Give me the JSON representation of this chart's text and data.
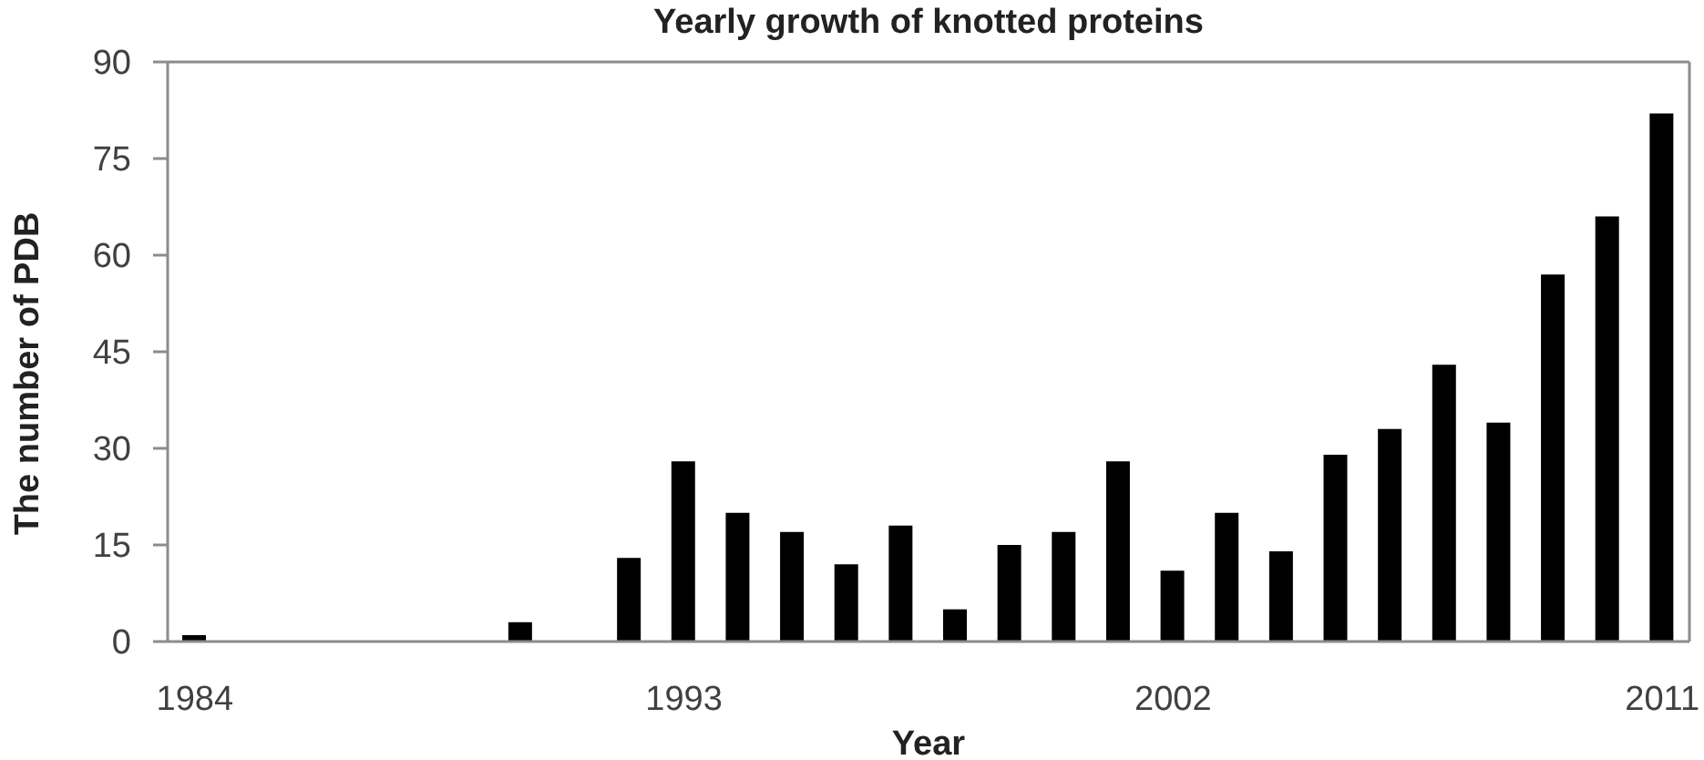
{
  "chart_data": {
    "type": "bar",
    "title": "Yearly growth of knotted proteins",
    "xlabel": "Year",
    "ylabel": "The number of PDB",
    "categories": [
      "1984",
      null,
      null,
      null,
      null,
      null,
      null,
      null,
      null,
      "1993",
      null,
      null,
      null,
      null,
      null,
      null,
      null,
      null,
      "2002",
      null,
      null,
      null,
      null,
      null,
      null,
      null,
      null,
      "2011"
    ],
    "values": [
      1,
      0,
      0,
      0,
      0,
      0,
      3,
      0,
      13,
      28,
      20,
      17,
      12,
      18,
      5,
      15,
      17,
      28,
      11,
      20,
      14,
      29,
      33,
      43,
      34,
      57,
      66,
      82
    ],
    "color": "#000000",
    "ylim": [
      0,
      90
    ],
    "yticks": [
      0,
      15,
      30,
      45,
      60,
      75,
      90
    ]
  }
}
